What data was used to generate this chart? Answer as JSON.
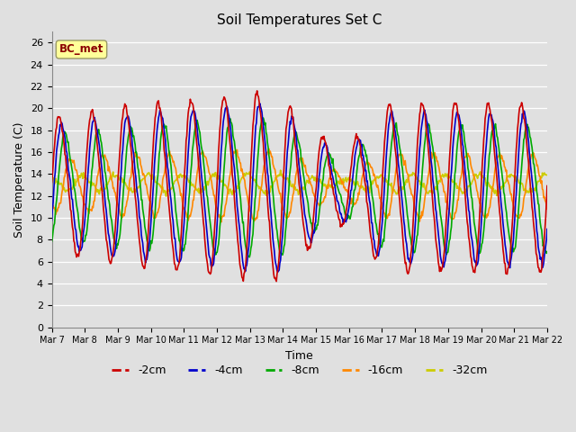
{
  "title": "Soil Temperatures Set C",
  "xlabel": "Time",
  "ylabel": "Soil Temperature (C)",
  "annotation": "BC_met",
  "ylim": [
    0,
    27
  ],
  "yticks": [
    0,
    2,
    4,
    6,
    8,
    10,
    12,
    14,
    16,
    18,
    20,
    22,
    24,
    26
  ],
  "x_labels": [
    "Mar 7",
    "Mar 8",
    "Mar 9",
    "Mar 10",
    "Mar 11",
    "Mar 12",
    "Mar 13",
    "Mar 14",
    "Mar 15",
    "Mar 16",
    "Mar 17",
    "Mar 18",
    "Mar 19",
    "Mar 20",
    "Mar 21",
    "Mar 22"
  ],
  "colors": {
    "-2cm": "#cc0000",
    "-4cm": "#0000cc",
    "-8cm": "#00aa00",
    "-16cm": "#ff8800",
    "-32cm": "#cccc00"
  },
  "bg_color": "#e0e0e0",
  "grid_color": "#ffffff",
  "n_points": 720,
  "days": 15
}
